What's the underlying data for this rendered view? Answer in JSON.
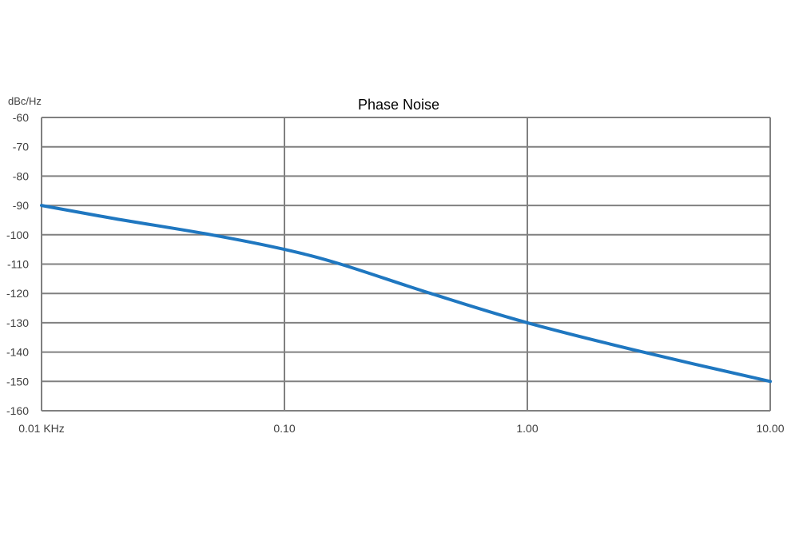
{
  "chart_data": {
    "type": "line",
    "title": "Phase Noise",
    "ylabel": "dBc/Hz",
    "xlabel": "",
    "x_scale": "log",
    "xlim": [
      0.01,
      10
    ],
    "ylim": [
      -160,
      -60
    ],
    "x_ticks": [
      {
        "value": 0.01,
        "label": "0.01 KHz"
      },
      {
        "value": 0.1,
        "label": "0.10"
      },
      {
        "value": 1,
        "label": "1.00"
      },
      {
        "value": 10,
        "label": "10.00"
      }
    ],
    "y_ticks": [
      {
        "value": -60,
        "label": "-60"
      },
      {
        "value": -70,
        "label": "-70"
      },
      {
        "value": -80,
        "label": "-80"
      },
      {
        "value": -90,
        "label": "-90"
      },
      {
        "value": -100,
        "label": "-100"
      },
      {
        "value": -110,
        "label": "-110"
      },
      {
        "value": -120,
        "label": "-120"
      },
      {
        "value": -130,
        "label": "-130"
      },
      {
        "value": -140,
        "label": "-140"
      },
      {
        "value": -150,
        "label": "-150"
      },
      {
        "value": -160,
        "label": "-160"
      }
    ],
    "grid": true,
    "legend": "none",
    "series": [
      {
        "color": "#1f77c0",
        "x": [
          0.01,
          0.02,
          0.05,
          0.1,
          0.17,
          0.4,
          1,
          3,
          10
        ],
        "values": [
          -90,
          -94.5,
          -100,
          -105,
          -110,
          -120,
          -130,
          -140,
          -150
        ]
      }
    ],
    "colors": {
      "grid": "#808080",
      "axis_text": "#404040",
      "title_text": "#000000"
    }
  }
}
